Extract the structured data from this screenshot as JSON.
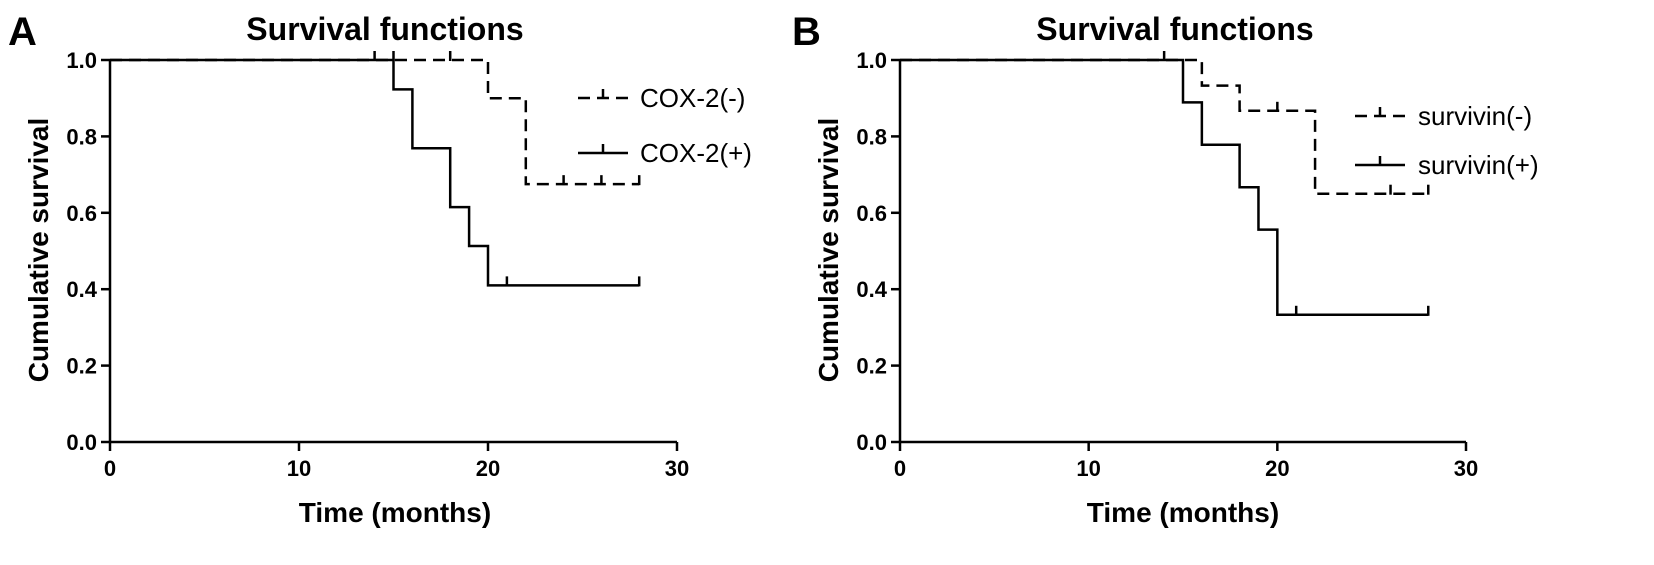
{
  "chart_data": [
    {
      "panel_label": "A",
      "type": "line",
      "title": "Survival functions",
      "xlabel": "Time (months)",
      "ylabel": "Cumulative survival",
      "xlim": [
        0,
        30
      ],
      "ylim": [
        0,
        1
      ],
      "x_ticks": [
        0,
        10,
        20,
        30
      ],
      "y_ticks": [
        0.0,
        0.2,
        0.4,
        0.6,
        0.8,
        1.0
      ],
      "x_tick_labels": [
        "0",
        "10",
        "20",
        "30"
      ],
      "y_tick_labels": [
        "0.0",
        "0.2",
        "0.4",
        "0.6",
        "0.8",
        "1.0"
      ],
      "legend_position": "top-right",
      "series": [
        {
          "name": "COX-2(-)",
          "style": "dashed",
          "steps": [
            [
              0,
              1.0
            ],
            [
              20,
              0.9
            ],
            [
              22,
              0.675
            ]
          ],
          "end_x": 28,
          "censored": [
            [
              14,
              1.0
            ],
            [
              18,
              1.0
            ],
            [
              24,
              0.675
            ],
            [
              26,
              0.675
            ],
            [
              28,
              0.675
            ]
          ]
        },
        {
          "name": "COX-2(+)",
          "style": "solid",
          "steps": [
            [
              0,
              1.0
            ],
            [
              15,
              0.923
            ],
            [
              16,
              0.769
            ],
            [
              18,
              0.615
            ],
            [
              19,
              0.513
            ],
            [
              20,
              0.41
            ]
          ],
          "end_x": 28,
          "censored": [
            [
              15,
              1.0
            ],
            [
              21,
              0.41
            ],
            [
              28,
              0.41
            ]
          ]
        }
      ]
    },
    {
      "panel_label": "B",
      "type": "line",
      "title": "Survival functions",
      "xlabel": "Time (months)",
      "ylabel": "Cumulative survival",
      "xlim": [
        0,
        30
      ],
      "ylim": [
        0,
        1
      ],
      "x_ticks": [
        0,
        10,
        20,
        30
      ],
      "y_ticks": [
        0.0,
        0.2,
        0.4,
        0.6,
        0.8,
        1.0
      ],
      "x_tick_labels": [
        "0",
        "10",
        "20",
        "30"
      ],
      "y_tick_labels": [
        "0.0",
        "0.2",
        "0.4",
        "0.6",
        "0.8",
        "1.0"
      ],
      "legend_position": "top-right",
      "series": [
        {
          "name": "survivin(-)",
          "style": "dashed",
          "steps": [
            [
              0,
              1.0
            ],
            [
              16,
              0.933
            ],
            [
              18,
              0.867
            ],
            [
              22,
              0.65
            ]
          ],
          "end_x": 28,
          "censored": [
            [
              14,
              1.0
            ],
            [
              20,
              0.867
            ],
            [
              26,
              0.65
            ],
            [
              28,
              0.65
            ]
          ]
        },
        {
          "name": "survivin(+)",
          "style": "solid",
          "steps": [
            [
              0,
              1.0
            ],
            [
              15,
              0.889
            ],
            [
              16,
              0.778
            ],
            [
              18,
              0.667
            ],
            [
              19,
              0.556
            ],
            [
              20,
              0.333
            ]
          ],
          "end_x": 28,
          "censored": [
            [
              21,
              0.333
            ],
            [
              28,
              0.333
            ]
          ]
        }
      ]
    }
  ]
}
